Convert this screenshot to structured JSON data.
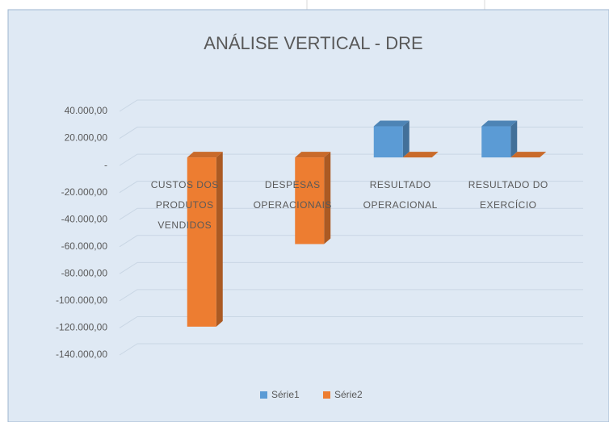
{
  "chart_data": {
    "type": "bar3d",
    "title": "ANÁLISE VERTICAL - DRE",
    "categories": [
      "CUSTOS DOS PRODUTOS VENDIDOS",
      "DESPESAS OPERACIONAIS",
      "RESULTADO OPERACIONAL",
      "RESULTADO DO EXERCÍCIO"
    ],
    "series": [
      {
        "name": "Série1",
        "color": "#5b9bd5",
        "values": [
          null,
          null,
          23000,
          23000
        ]
      },
      {
        "name": "Série2",
        "color": "#ed7d31",
        "values": [
          -125000,
          -64000,
          0,
          0
        ]
      }
    ],
    "ylim": [
      -140000,
      40000
    ],
    "yticks": [
      {
        "value": 40000,
        "label": "40.000,00"
      },
      {
        "value": 20000,
        "label": "20.000,00"
      },
      {
        "value": 0,
        "label": "-"
      },
      {
        "value": -20000,
        "label": "-20.000,00"
      },
      {
        "value": -40000,
        "label": "-40.000,00"
      },
      {
        "value": -60000,
        "label": "-60.000,00"
      },
      {
        "value": -80000,
        "label": "-80.000,00"
      },
      {
        "value": -100000,
        "label": "-100.000,00"
      },
      {
        "value": -120000,
        "label": "-120.000,00"
      },
      {
        "value": -140000,
        "label": "-140.000,00"
      }
    ],
    "grid": true,
    "legend": "bottom"
  }
}
